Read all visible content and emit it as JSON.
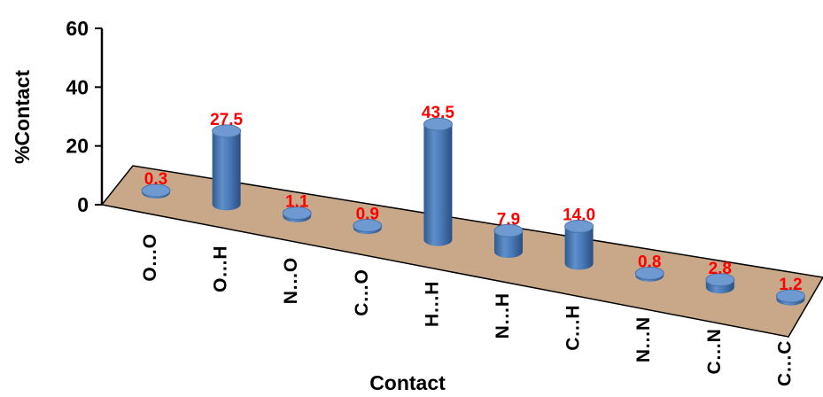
{
  "chart_data": {
    "type": "bar",
    "title": "",
    "xlabel": "Contact",
    "ylabel": "%Contact",
    "ylim": [
      0,
      60
    ],
    "yticks": [
      0,
      20,
      40,
      60
    ],
    "categories": [
      "O…O",
      "O…H",
      "N…O",
      "C…O",
      "H…H",
      "N…H",
      "C…H",
      "N…N",
      "C…N",
      "C…C"
    ],
    "values": [
      0.3,
      27.5,
      1.1,
      0.9,
      43.5,
      7.9,
      14.0,
      0.8,
      2.8,
      1.2
    ],
    "data_labels": [
      "0.3",
      "27.5",
      "1.1",
      "0.9",
      "43.5",
      "7.9",
      "14.0",
      "0.8",
      "2.8",
      "1.2"
    ],
    "style": "3d-cylinder",
    "grid": false,
    "legend": "none",
    "colors": {
      "bar": "#4F81BD",
      "floor": "#C9A88A",
      "data_label": "#FF0000",
      "axis": "#000000"
    }
  }
}
